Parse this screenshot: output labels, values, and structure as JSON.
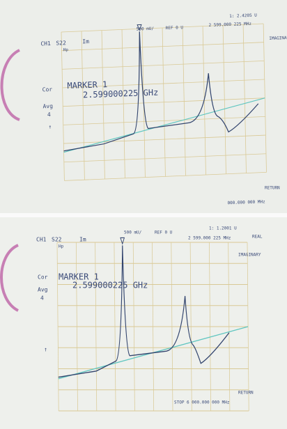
{
  "panels": [
    {
      "channel": "CH1",
      "parameter": "S22",
      "format": "Im",
      "scale": "500 mU/",
      "reference": "REF 0 U",
      "marker_value": "1: 2.4205 U",
      "marker_freq": "2 599.000 225 MHz",
      "softkey_top": "IMAGINARY",
      "softkey_bottom": "RETURN",
      "cor": "Cor",
      "avg": "Avg",
      "avg_count": "4",
      "hp": "Hp",
      "marker_title": "MARKER 1",
      "marker_readout": "2.599000225 GHz",
      "stop": "000.000 000 MHz"
    },
    {
      "channel": "CH1",
      "parameter": "S22",
      "format": "Im",
      "scale": "500 mU/",
      "reference": "REF 0 U",
      "marker_value": "1: 1.2001 U",
      "marker_freq": "2 599.000 225 MHz",
      "softkey_top": "REAL",
      "softkey_mid": "IMAGINARY",
      "softkey_bottom": "RETURN",
      "cor": "Cor",
      "avg": "Avg",
      "avg_count": "4",
      "hp": "Hp",
      "marker_title": "MARKER 1",
      "marker_readout": "2.599000225 GHz",
      "stop": "STOP 6 000.000 000 MHz"
    }
  ]
}
